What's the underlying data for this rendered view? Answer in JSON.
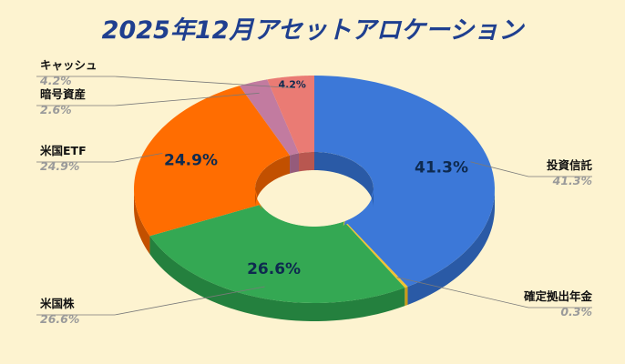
{
  "chart_data": {
    "type": "pie",
    "title": "2025年12月アセットアロケーション",
    "slices": [
      {
        "label": "投資信託",
        "value": 41.3,
        "display": "41.3%",
        "color": "#3c78d8",
        "side": "#2a5aa6"
      },
      {
        "label": "確定拠出年金",
        "value": 0.3,
        "display": "0.3%",
        "color": "#f1c232",
        "side": "#c79a1a"
      },
      {
        "label": "米国株",
        "value": 26.6,
        "display": "26.6%",
        "color": "#34a853",
        "side": "#24803e"
      },
      {
        "label": "米国ETF",
        "value": 24.9,
        "display": "24.9%",
        "color": "#ff6d01",
        "side": "#c25000"
      },
      {
        "label": "暗号資産",
        "value": 2.6,
        "display": "2.6%",
        "color": "#c27ba0",
        "side": "#955b7b"
      },
      {
        "label": "キャッシュ",
        "value": 4.2,
        "display": "4.2%",
        "color": "#ea7b74",
        "side": "#b85750"
      }
    ]
  }
}
